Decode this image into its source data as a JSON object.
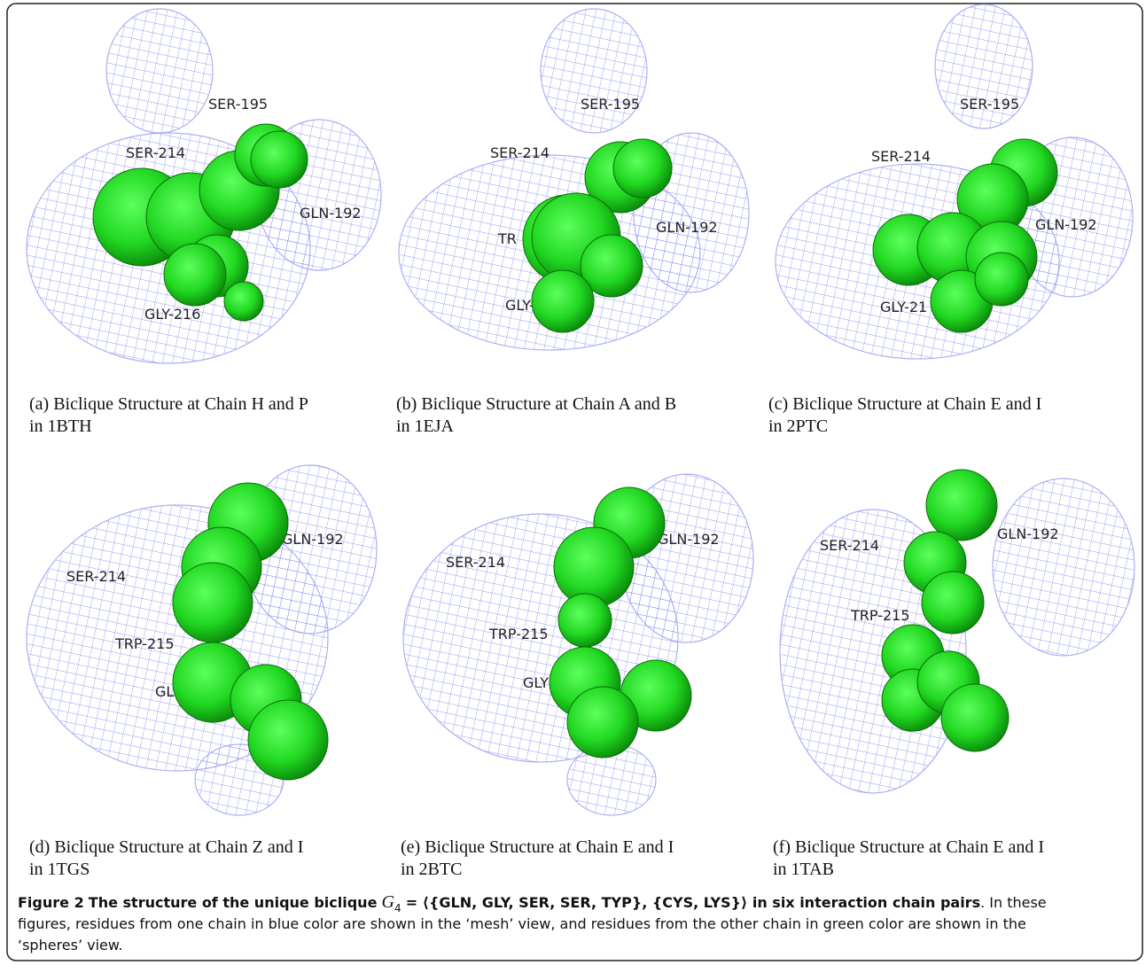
{
  "panels": [
    {
      "labels": [
        "SER-195",
        "SER-214",
        "GLN-192",
        "GLY-216"
      ],
      "caption_lines": [
        "(a) Biclique Structure at Chain H and P",
        "in 1BTH"
      ]
    },
    {
      "labels": [
        "SER-195",
        "SER-214",
        "TR",
        "GLN-192",
        "GLY-2"
      ],
      "caption_lines": [
        "(b) Biclique Structure at Chain A and B",
        "in 1EJA"
      ]
    },
    {
      "labels": [
        "SER-195",
        "SER-214",
        "GLN-192",
        "GLY-21"
      ],
      "caption_lines": [
        "(c) Biclique Structure at Chain E and I",
        "in 2PTC"
      ]
    },
    {
      "labels": [
        "GLN-192",
        "SER-214",
        "TRP-215",
        "GL"
      ],
      "caption_lines": [
        "(d) Biclique Structure at Chain Z and I",
        "in 1TGS"
      ]
    },
    {
      "labels": [
        "GLN-192",
        "SER-214",
        "TRP-215",
        "GLY"
      ],
      "caption_lines": [
        "(e) Biclique Structure at Chain E and I",
        "in 2BTC"
      ]
    },
    {
      "labels": [
        "SER-214",
        "GLN-192",
        "TRP-215"
      ],
      "caption_lines": [
        "(f) Biclique Structure at Chain E and I",
        "in 1TAB"
      ]
    }
  ],
  "caption": {
    "label": "Figure 2",
    "title": "The structure of the unique biclique",
    "symbol": "G",
    "subscript": "4",
    "title_rest": "= ⟨{GLN, GLY, SER, SER, TYP}, {CYS, LYS}⟩ in six interaction chain pairs",
    "text_lines": [
      ". In these",
      "figures, residues from one chain in blue color are shown in the ‘mesh’ view, and residues from the other chain in green color are shown in the",
      "‘spheres’ view."
    ]
  }
}
